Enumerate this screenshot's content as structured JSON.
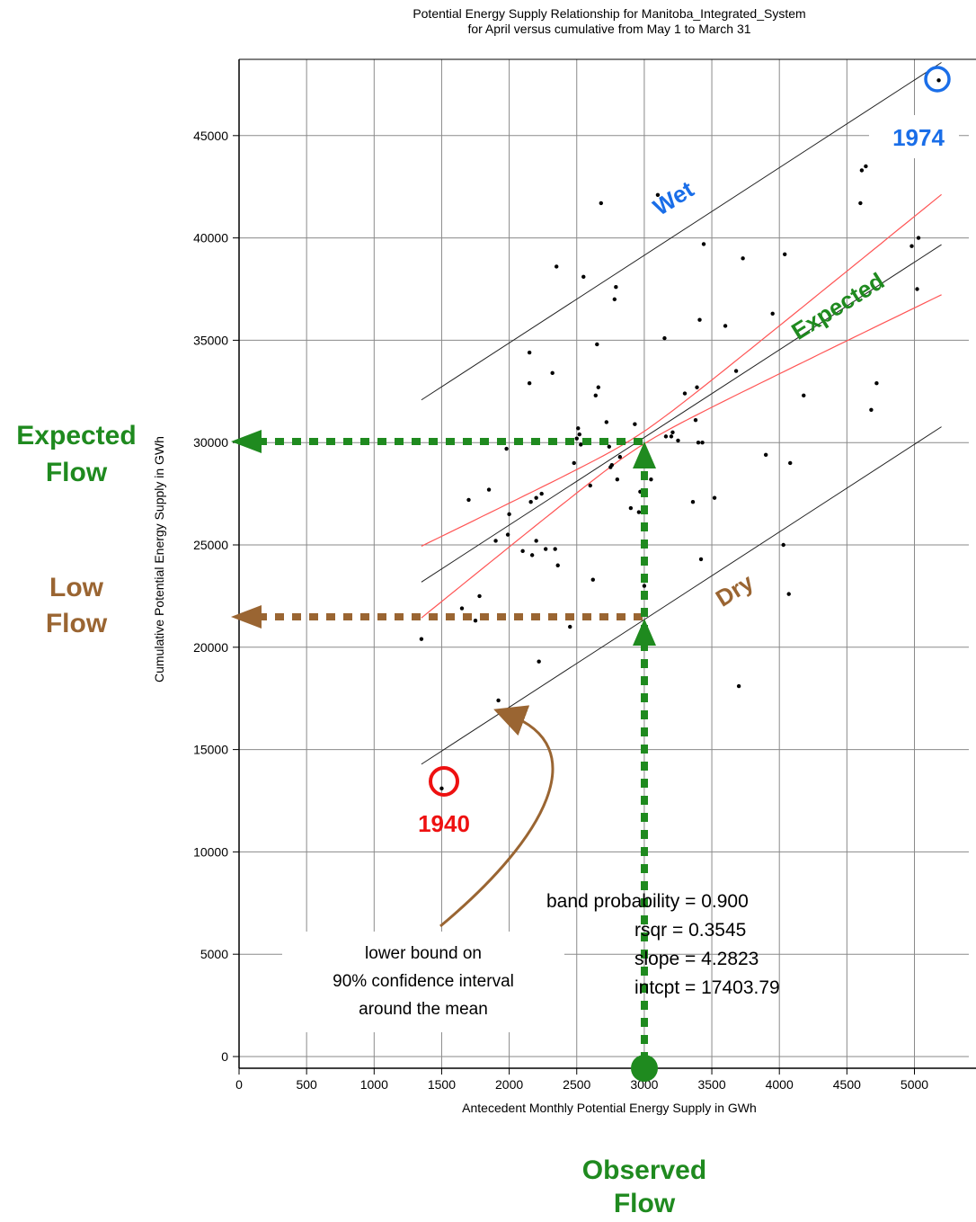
{
  "chart_data": {
    "type": "scatter",
    "title_line1": "Potential Energy Supply Relationship for Manitoba_Integrated_System",
    "title_line2": "for  April versus cumulative from May 1 to March 31",
    "xlabel": "Antecedent Monthly Potential Energy Supply in GWh",
    "ylabel": "Cumulative Potential Energy Supply in GWh",
    "xlim": [
      0,
      5300
    ],
    "ylim": [
      -500,
      49500
    ],
    "x_ticks": [
      0,
      500,
      1000,
      1500,
      2000,
      2500,
      3000,
      3500,
      4000,
      4500,
      5000
    ],
    "y_ticks": [
      0,
      5000,
      10000,
      15000,
      20000,
      25000,
      30000,
      35000,
      40000,
      45000
    ],
    "grid": true,
    "points": [
      {
        "x": 1350,
        "y": 20400
      },
      {
        "x": 1500,
        "y": 13100
      },
      {
        "x": 1650,
        "y": 21900
      },
      {
        "x": 1700,
        "y": 27200
      },
      {
        "x": 1750,
        "y": 21300
      },
      {
        "x": 1780,
        "y": 22500
      },
      {
        "x": 1850,
        "y": 27700
      },
      {
        "x": 1900,
        "y": 25200
      },
      {
        "x": 1920,
        "y": 17400
      },
      {
        "x": 1980,
        "y": 29700
      },
      {
        "x": 1990,
        "y": 25500
      },
      {
        "x": 2000,
        "y": 26500
      },
      {
        "x": 2100,
        "y": 24700
      },
      {
        "x": 2150,
        "y": 34400
      },
      {
        "x": 2150,
        "y": 32900
      },
      {
        "x": 2160,
        "y": 27100
      },
      {
        "x": 2170,
        "y": 24500
      },
      {
        "x": 2200,
        "y": 27300
      },
      {
        "x": 2200,
        "y": 25200
      },
      {
        "x": 2220,
        "y": 19300
      },
      {
        "x": 2240,
        "y": 27500
      },
      {
        "x": 2270,
        "y": 24800
      },
      {
        "x": 2320,
        "y": 33400
      },
      {
        "x": 2340,
        "y": 24800
      },
      {
        "x": 2350,
        "y": 38600
      },
      {
        "x": 2360,
        "y": 24000
      },
      {
        "x": 2450,
        "y": 21000
      },
      {
        "x": 2480,
        "y": 29000
      },
      {
        "x": 2500,
        "y": 30200
      },
      {
        "x": 2510,
        "y": 30700
      },
      {
        "x": 2520,
        "y": 30400
      },
      {
        "x": 2530,
        "y": 29900
      },
      {
        "x": 2550,
        "y": 38100
      },
      {
        "x": 2600,
        "y": 27900
      },
      {
        "x": 2620,
        "y": 23300
      },
      {
        "x": 2640,
        "y": 32300
      },
      {
        "x": 2650,
        "y": 34800
      },
      {
        "x": 2660,
        "y": 32700
      },
      {
        "x": 2680,
        "y": 41700
      },
      {
        "x": 2720,
        "y": 31000
      },
      {
        "x": 2740,
        "y": 29800
      },
      {
        "x": 2750,
        "y": 28800
      },
      {
        "x": 2760,
        "y": 28900
      },
      {
        "x": 2780,
        "y": 37000
      },
      {
        "x": 2790,
        "y": 37600
      },
      {
        "x": 2800,
        "y": 28200
      },
      {
        "x": 2820,
        "y": 29300
      },
      {
        "x": 2850,
        "y": 30000
      },
      {
        "x": 2900,
        "y": 26800
      },
      {
        "x": 2930,
        "y": 30900
      },
      {
        "x": 2960,
        "y": 26600
      },
      {
        "x": 2970,
        "y": 27600
      },
      {
        "x": 3000,
        "y": 23000
      },
      {
        "x": 3050,
        "y": 28200
      },
      {
        "x": 3100,
        "y": 42100
      },
      {
        "x": 3150,
        "y": 35100
      },
      {
        "x": 3160,
        "y": 30300
      },
      {
        "x": 3200,
        "y": 30300
      },
      {
        "x": 3210,
        "y": 30500
      },
      {
        "x": 3250,
        "y": 30100
      },
      {
        "x": 3300,
        "y": 32400
      },
      {
        "x": 3360,
        "y": 27100
      },
      {
        "x": 3380,
        "y": 31100
      },
      {
        "x": 3390,
        "y": 32700
      },
      {
        "x": 3400,
        "y": 30000
      },
      {
        "x": 3410,
        "y": 36000
      },
      {
        "x": 3420,
        "y": 24300
      },
      {
        "x": 3430,
        "y": 30000
      },
      {
        "x": 3440,
        "y": 39700
      },
      {
        "x": 3520,
        "y": 27300
      },
      {
        "x": 3600,
        "y": 35700
      },
      {
        "x": 3680,
        "y": 33500
      },
      {
        "x": 3700,
        "y": 18100
      },
      {
        "x": 3730,
        "y": 39000
      },
      {
        "x": 3900,
        "y": 29400
      },
      {
        "x": 3950,
        "y": 36300
      },
      {
        "x": 4030,
        "y": 25000
      },
      {
        "x": 4040,
        "y": 39200
      },
      {
        "x": 4070,
        "y": 22600
      },
      {
        "x": 4080,
        "y": 29000
      },
      {
        "x": 4180,
        "y": 32300
      },
      {
        "x": 4600,
        "y": 41700
      },
      {
        "x": 4610,
        "y": 43300
      },
      {
        "x": 4640,
        "y": 43500
      },
      {
        "x": 4680,
        "y": 31600
      },
      {
        "x": 4720,
        "y": 32900
      },
      {
        "x": 4980,
        "y": 39600
      },
      {
        "x": 5020,
        "y": 37500
      },
      {
        "x": 5030,
        "y": 40000
      },
      {
        "x": 5180,
        "y": 47700
      }
    ],
    "regression": {
      "x_start": 1350,
      "x_end": 5200
    },
    "stats_lines": [
      "band probability = 0.900",
      "rsqr   = 0.3545",
      "slope  = 4.2823",
      "intcpt = 17403.79"
    ],
    "colors": {
      "conf_band": "#ff5555",
      "expected": "#1f8a1f",
      "low": "#9a6532",
      "wet": "#1a6ee8",
      "red_circle": "#ee1111"
    }
  },
  "annotations": {
    "wet": "Wet",
    "expected": "Expected",
    "dry": "Dry",
    "year_high": "1974",
    "year_low": "1940",
    "expected_flow": [
      "Expected",
      "Flow"
    ],
    "low_flow": [
      "Low",
      "Flow"
    ],
    "observed_flow": [
      "Observed",
      "Flow"
    ],
    "note_lines": [
      "lower bound on",
      "90% confidence interval",
      "around the mean"
    ]
  }
}
